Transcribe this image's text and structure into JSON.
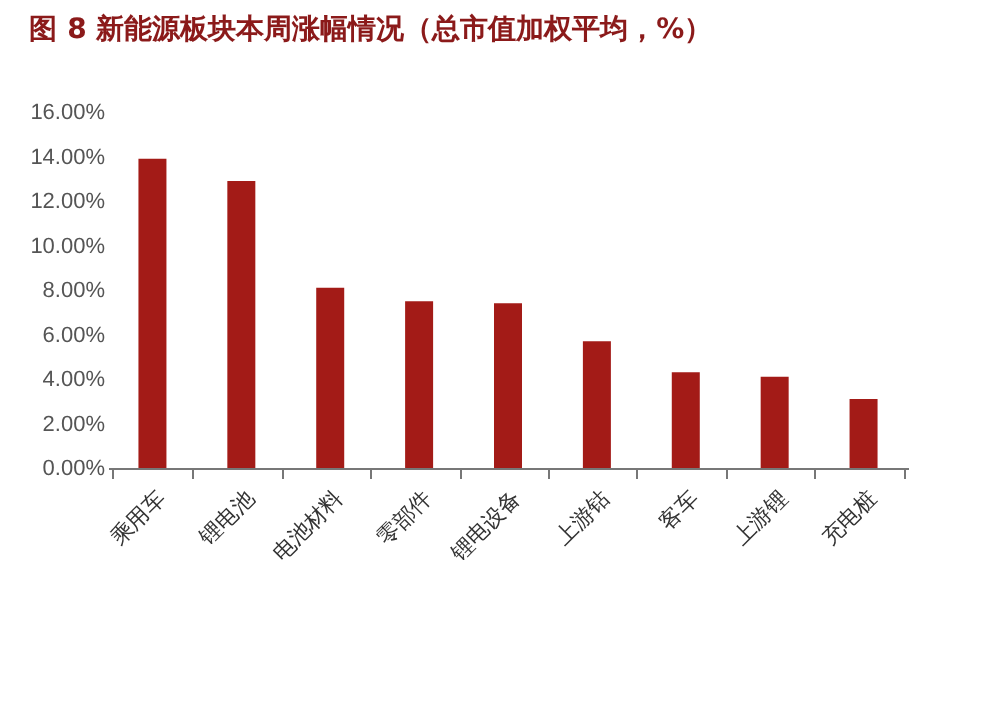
{
  "chart_data": {
    "type": "bar",
    "title": "图 8 新能源板块本周涨幅情况（总市值加权平均，%）",
    "categories": [
      "乘用车",
      "锂电池",
      "电池材料",
      "零部件",
      "锂电设备",
      "上游钴",
      "客车",
      "上游锂",
      "充电桩"
    ],
    "values": [
      13.9,
      12.9,
      8.1,
      7.5,
      7.4,
      5.7,
      4.3,
      4.1,
      3.1
    ],
    "color": "#a31b17",
    "ylim": [
      0,
      16
    ],
    "yticks": [
      {
        "value": 0,
        "label": "0.00%"
      },
      {
        "value": 2,
        "label": "2.00%"
      },
      {
        "value": 4,
        "label": "4.00%"
      },
      {
        "value": 6,
        "label": "6.00%"
      },
      {
        "value": 8,
        "label": "8.00%"
      },
      {
        "value": 10,
        "label": "10.00%"
      },
      {
        "value": 12,
        "label": "12.00%"
      },
      {
        "value": 14,
        "label": "14.00%"
      },
      {
        "value": 16,
        "label": "16.00%"
      }
    ],
    "grid": false
  }
}
